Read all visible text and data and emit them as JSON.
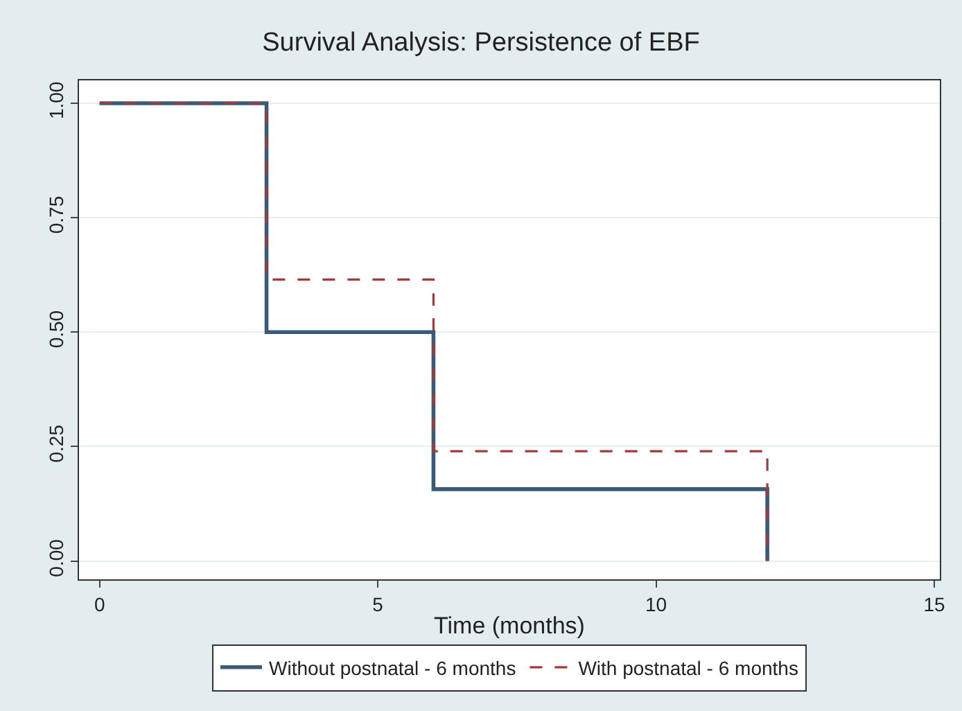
{
  "chart_data": {
    "type": "step",
    "title": "Survival Analysis: Persistence of EBF",
    "xlabel": "Time (months)",
    "x": [
      0,
      3,
      6,
      12
    ],
    "series": [
      {
        "name": "Without postnatal - 6 months",
        "color": "#3a5a7c",
        "values": [
          1,
          0.5,
          0.157,
          0
        ],
        "line_style": "solid"
      },
      {
        "name": "With postnatal - 6 months",
        "color": "#a33a3a",
        "values": [
          1,
          0.615,
          0.24,
          0
        ],
        "line_style": "dashed"
      }
    ],
    "xlim": [
      -0.37,
      15.1
    ],
    "ylim": [
      -0.04,
      1.05
    ],
    "xticks": [
      0,
      5,
      10,
      15
    ],
    "yticks": [
      {
        "value": 0,
        "label": "0.00"
      },
      {
        "value": 0.25,
        "label": "0.25"
      },
      {
        "value": 0.5,
        "label": "0.50"
      },
      {
        "value": 0.75,
        "label": "0.75"
      },
      {
        "value": 1,
        "label": "1.00"
      }
    ],
    "grid": "y",
    "legend": "bottom"
  }
}
